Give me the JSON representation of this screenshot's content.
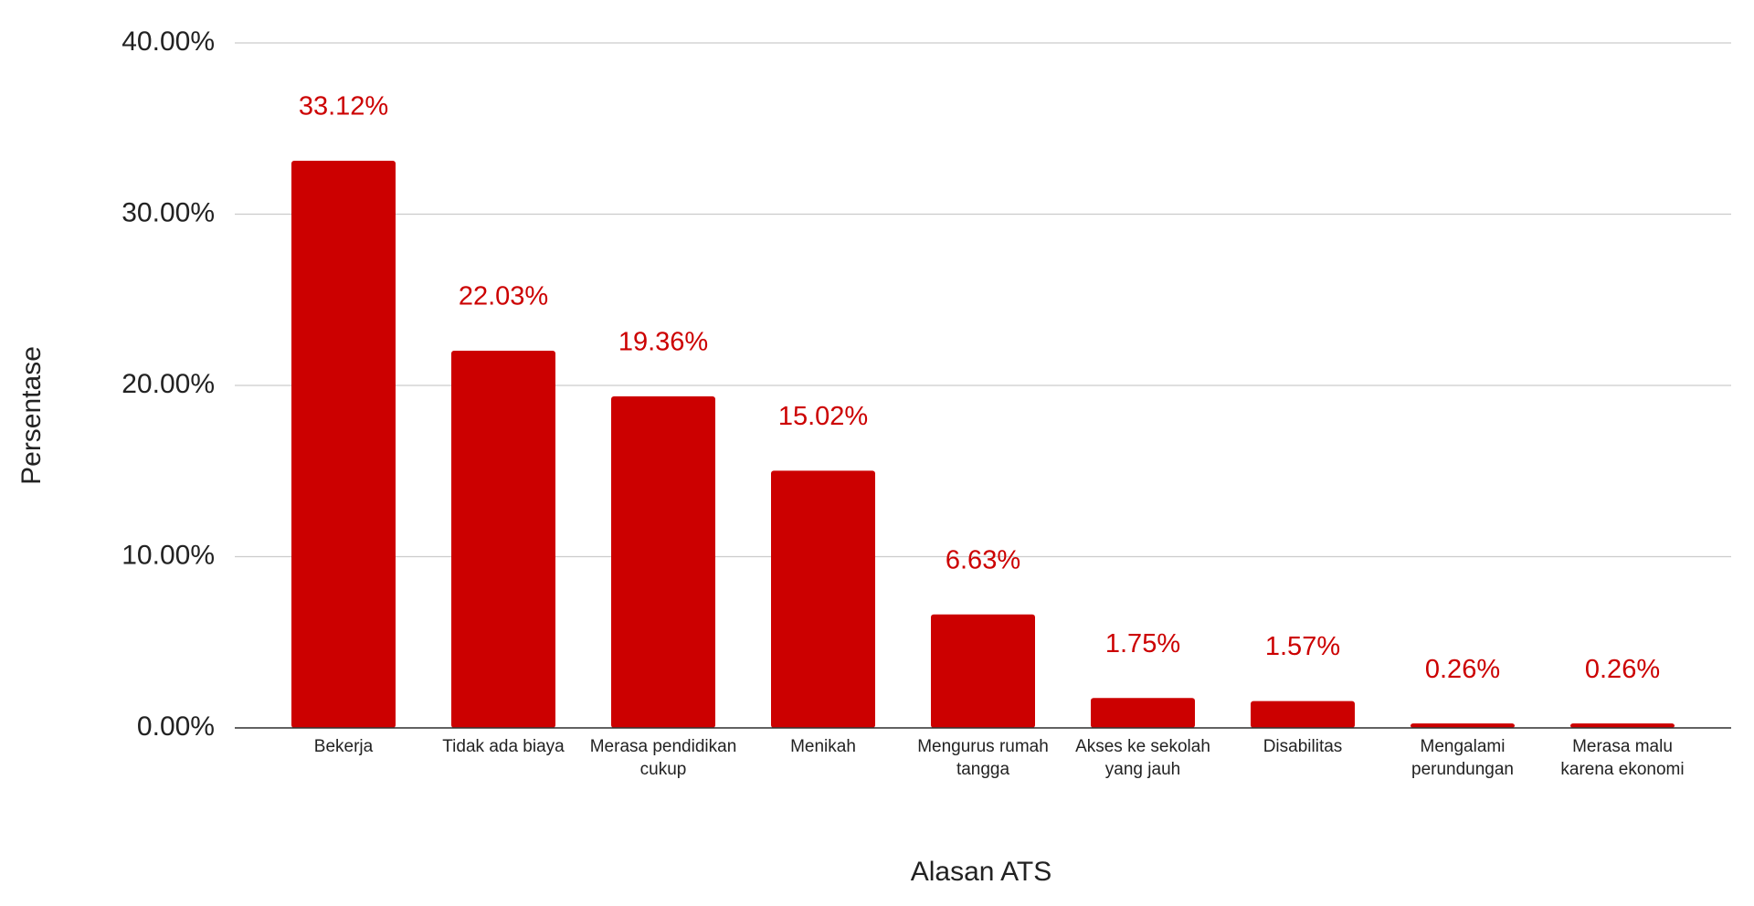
{
  "chart_data": {
    "type": "bar",
    "x_label": "Alasan ATS",
    "y_label": "Persentase",
    "categories": [
      "Bekerja",
      "Tidak ada biaya",
      "Merasa pendidikan cukup",
      "Menikah",
      "Mengurus rumah tangga",
      "Akses ke sekolah yang jauh",
      "Disabilitas",
      "Mengalami perundungan",
      "Merasa malu karena ekonomi"
    ],
    "values": [
      33.12,
      22.03,
      19.36,
      15.02,
      6.63,
      1.75,
      1.57,
      0.26,
      0.26
    ],
    "value_labels": [
      "33.12%",
      "22.03%",
      "19.36%",
      "15.02%",
      "6.63%",
      "1.75%",
      "1.57%",
      "0.26%",
      "0.26%"
    ],
    "color": "#cc0000",
    "ylim": [
      0,
      40
    ],
    "yticks": [
      {
        "value": 0,
        "label": "0.00%"
      },
      {
        "value": 10,
        "label": "10.00%"
      },
      {
        "value": 20,
        "label": "20.00%"
      },
      {
        "value": 30,
        "label": "30.00%"
      },
      {
        "value": 40,
        "label": "40.00%"
      }
    ],
    "grid": true
  }
}
